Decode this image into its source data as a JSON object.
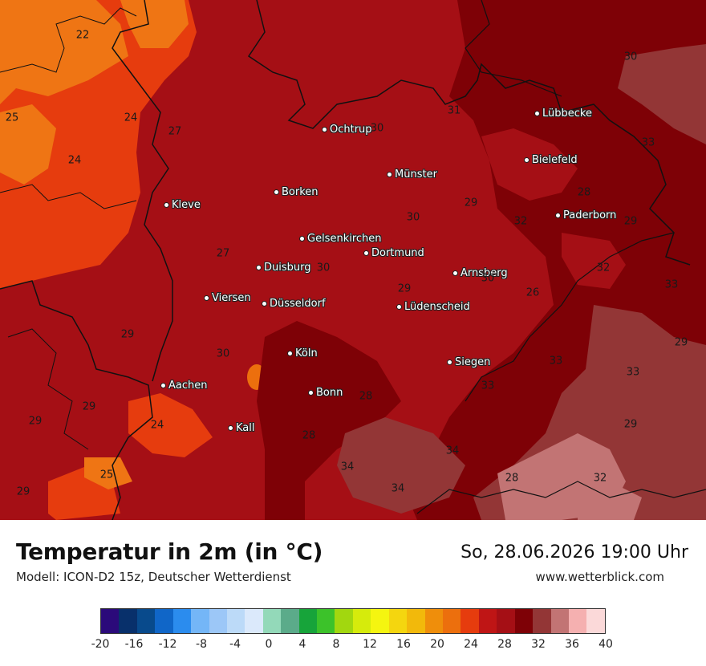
{
  "map": {
    "title": "Temperatur in 2m (in °C)",
    "model": "Modell: ICON-D2 15z, Deutscher Wetterdienst",
    "datetime": "So, 28.06.2026 19:00 Uhr",
    "website": "www.wetterblick.com",
    "cities": [
      {
        "name": "Ochtrup"
      },
      {
        "name": "Lübbecke"
      },
      {
        "name": "Bielefeld"
      },
      {
        "name": "Münster"
      },
      {
        "name": "Borken"
      },
      {
        "name": "Kleve"
      },
      {
        "name": "Paderborn"
      },
      {
        "name": "Gelsenkirchen"
      },
      {
        "name": "Dortmund"
      },
      {
        "name": "Duisburg"
      },
      {
        "name": "Arnsberg"
      },
      {
        "name": "Viersen"
      },
      {
        "name": "Düsseldorf"
      },
      {
        "name": "Lüdenscheid"
      },
      {
        "name": "Köln"
      },
      {
        "name": "Siegen"
      },
      {
        "name": "Aachen"
      },
      {
        "name": "Bonn"
      },
      {
        "name": "Kall"
      }
    ],
    "values": [
      "22",
      "30",
      "25",
      "24",
      "27",
      "31",
      "30",
      "33",
      "24",
      "29",
      "28",
      "30",
      "32",
      "29",
      "27",
      "30",
      "32",
      "30",
      "33",
      "29",
      "26",
      "29",
      "30",
      "33",
      "29",
      "33",
      "33",
      "28",
      "24",
      "29",
      "28",
      "29",
      "34",
      "25",
      "34",
      "34",
      "28",
      "32",
      "29"
    ],
    "legend": {
      "colors": [
        "#2b0a7a",
        "#08306b",
        "#084a8c",
        "#1066c8",
        "#2b8cee",
        "#74b6f7",
        "#9cc7f7",
        "#bcdaf8",
        "#dbe9fb",
        "#93d9b9",
        "#5bab8a",
        "#17a43a",
        "#3cc22a",
        "#a2d70f",
        "#d6eb0c",
        "#f5f510",
        "#f4d60f",
        "#f2b90b",
        "#ef8e0b",
        "#ec6f0d",
        "#e63c0e",
        "#bf1515",
        "#a50f15",
        "#7e0106",
        "#933636",
        "#c27474",
        "#f5b0b0",
        "#fbd9d9"
      ],
      "ticks": [
        "-20",
        "-16",
        "-12",
        "-8",
        "-4",
        "0",
        "4",
        "8",
        "12",
        "16",
        "20",
        "24",
        "28",
        "32",
        "36",
        "40"
      ]
    }
  }
}
